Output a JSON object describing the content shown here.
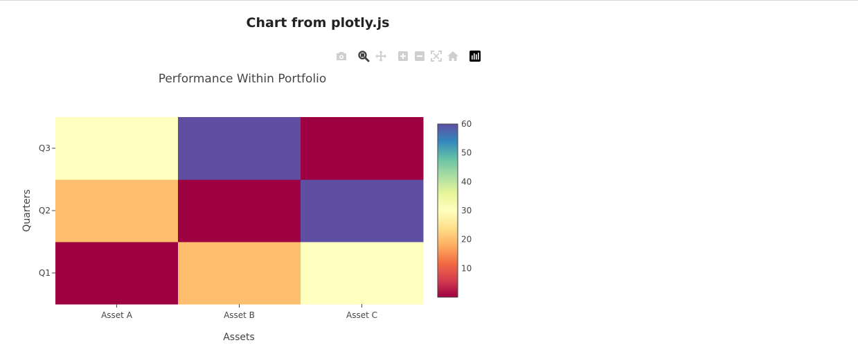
{
  "page": {
    "heading": "Chart from plotly.js"
  },
  "modebar": {
    "buttons": [
      {
        "name": "camera-icon",
        "color": "#cfcfcf"
      },
      {
        "name": "zoom-icon",
        "color": "#444444"
      },
      {
        "name": "pan-icon",
        "color": "#cfcfcf"
      },
      {
        "name": "zoom-in-icon",
        "color": "#cfcfcf"
      },
      {
        "name": "zoom-out-icon",
        "color": "#cfcfcf"
      },
      {
        "name": "autoscale-icon",
        "color": "#cfcfcf"
      },
      {
        "name": "reset-axes-icon",
        "color": "#cfcfcf"
      },
      {
        "name": "plotly-logo-icon",
        "color": "#000000"
      }
    ]
  },
  "chart_data": {
    "type": "heatmap",
    "title": "Performance Within Portfolio",
    "xlabel": "Assets",
    "ylabel": "Quarters",
    "x": [
      "Asset A",
      "Asset B",
      "Asset C"
    ],
    "y": [
      "Q1",
      "Q2",
      "Q3"
    ],
    "z": [
      [
        0,
        20,
        30
      ],
      [
        20,
        0,
        60
      ],
      [
        30,
        60,
        0
      ]
    ],
    "colorscale": "Spectral",
    "zrange": [
      0,
      60
    ],
    "colorbar_ticks": [
      10,
      20,
      30,
      40,
      50,
      60
    ],
    "colorbar_stops": [
      "#9e0142",
      "#d53e4f",
      "#f46d43",
      "#fdae61",
      "#fee08b",
      "#ffffbf",
      "#e6f598",
      "#abdda4",
      "#66c2a5",
      "#3288bd",
      "#5e4fa2"
    ]
  }
}
